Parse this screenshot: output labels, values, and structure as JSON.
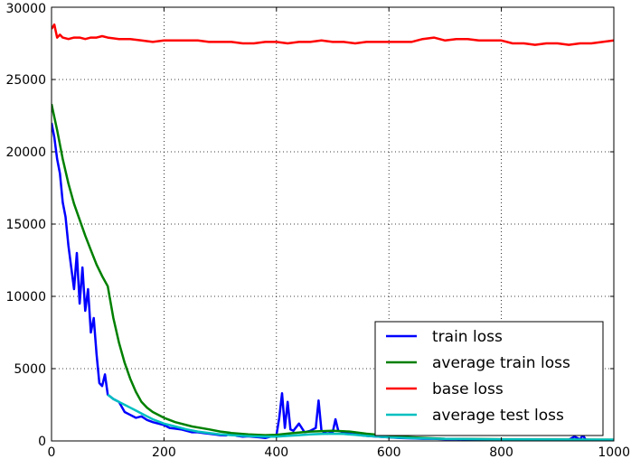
{
  "chart_data": {
    "type": "line",
    "title": "",
    "xlabel": "",
    "ylabel": "",
    "xlim": [
      0,
      1000
    ],
    "ylim": [
      0,
      30000
    ],
    "xticks": [
      "0",
      "200",
      "400",
      "600",
      "800",
      "1000"
    ],
    "yticks": [
      "0",
      "5000",
      "10000",
      "15000",
      "20000",
      "25000",
      "30000"
    ],
    "grid": true,
    "legend_position": "lower-right",
    "series": [
      {
        "name": "train loss",
        "color": "#0000ff",
        "x": [
          0,
          5,
          10,
          15,
          20,
          25,
          30,
          35,
          40,
          45,
          50,
          55,
          60,
          65,
          70,
          75,
          80,
          85,
          90,
          95,
          100,
          110,
          120,
          130,
          140,
          150,
          160,
          170,
          180,
          190,
          200,
          210,
          220,
          230,
          240,
          250,
          260,
          270,
          280,
          290,
          300,
          310,
          320,
          330,
          340,
          350,
          360,
          370,
          380,
          390,
          400,
          405,
          410,
          415,
          420,
          425,
          430,
          440,
          450,
          460,
          470,
          475,
          480,
          490,
          500,
          505,
          510,
          520,
          530,
          540,
          550,
          560,
          580,
          600,
          620,
          640,
          660,
          680,
          700,
          720,
          740,
          760,
          780,
          800,
          820,
          840,
          860,
          880,
          900,
          920,
          930,
          940,
          945,
          950,
          960,
          980,
          1000
        ],
        "y": [
          22000,
          21000,
          19500,
          18500,
          16500,
          15500,
          13500,
          12000,
          10500,
          13000,
          9500,
          12000,
          9000,
          10500,
          7500,
          8500,
          6000,
          4000,
          3800,
          4600,
          3200,
          2900,
          2700,
          2000,
          1800,
          1600,
          1700,
          1450,
          1300,
          1200,
          1100,
          900,
          850,
          800,
          700,
          600,
          600,
          550,
          500,
          450,
          400,
          380,
          500,
          350,
          300,
          320,
          280,
          250,
          200,
          300,
          400,
          1600,
          3300,
          900,
          2700,
          800,
          700,
          1200,
          600,
          700,
          900,
          2800,
          700,
          500,
          600,
          1500,
          700,
          600,
          500,
          450,
          400,
          350,
          300,
          250,
          200,
          180,
          150,
          150,
          120,
          120,
          100,
          100,
          90,
          90,
          80,
          80,
          70,
          70,
          60,
          80,
          300,
          100,
          400,
          80,
          60,
          60,
          50
        ]
      },
      {
        "name": "average train loss",
        "color": "#008000",
        "x": [
          0,
          10,
          20,
          30,
          40,
          50,
          60,
          70,
          80,
          90,
          100,
          110,
          120,
          130,
          140,
          150,
          160,
          170,
          180,
          200,
          220,
          250,
          280,
          300,
          320,
          350,
          380,
          400,
          430,
          460,
          500,
          530,
          560,
          600,
          640,
          680,
          700,
          800,
          900,
          1000
        ],
        "y": [
          23300,
          21500,
          19500,
          17800,
          16400,
          15300,
          14200,
          13200,
          12200,
          11400,
          10700,
          8500,
          6800,
          5400,
          4300,
          3400,
          2700,
          2300,
          2000,
          1600,
          1300,
          1000,
          800,
          650,
          550,
          450,
          400,
          420,
          550,
          650,
          700,
          650,
          500,
          350,
          250,
          180,
          150,
          120,
          100,
          90
        ]
      },
      {
        "name": "base loss",
        "color": "#ff0000",
        "x": [
          0,
          5,
          10,
          15,
          20,
          30,
          40,
          50,
          60,
          70,
          80,
          90,
          100,
          120,
          140,
          160,
          180,
          200,
          220,
          240,
          260,
          280,
          300,
          320,
          340,
          360,
          380,
          400,
          420,
          440,
          460,
          480,
          500,
          520,
          540,
          560,
          580,
          600,
          620,
          640,
          660,
          680,
          700,
          720,
          740,
          760,
          780,
          800,
          820,
          840,
          860,
          880,
          900,
          920,
          940,
          960,
          980,
          1000
        ],
        "y": [
          28500,
          28800,
          27900,
          28100,
          27900,
          27800,
          27900,
          27900,
          27800,
          27900,
          27900,
          28000,
          27900,
          27800,
          27800,
          27700,
          27600,
          27700,
          27700,
          27700,
          27700,
          27600,
          27600,
          27600,
          27500,
          27500,
          27600,
          27600,
          27500,
          27600,
          27600,
          27700,
          27600,
          27600,
          27500,
          27600,
          27600,
          27600,
          27600,
          27600,
          27800,
          27900,
          27700,
          27800,
          27800,
          27700,
          27700,
          27700,
          27500,
          27500,
          27400,
          27500,
          27500,
          27400,
          27500,
          27500,
          27600,
          27700
        ]
      },
      {
        "name": "average test loss",
        "color": "#00bfbf",
        "x": [
          100,
          110,
          120,
          130,
          140,
          150,
          160,
          170,
          180,
          200,
          220,
          240,
          260,
          280,
          300,
          320,
          340,
          360,
          380,
          400,
          420,
          440,
          460,
          480,
          500,
          520,
          540,
          560,
          600,
          650,
          700,
          800,
          900,
          1000
        ],
        "y": [
          3200,
          2900,
          2700,
          2500,
          2300,
          2100,
          1900,
          1700,
          1500,
          1200,
          1000,
          800,
          650,
          550,
          450,
          400,
          350,
          320,
          300,
          300,
          350,
          400,
          450,
          480,
          500,
          480,
          420,
          350,
          250,
          180,
          140,
          110,
          100,
          90
        ]
      }
    ]
  }
}
